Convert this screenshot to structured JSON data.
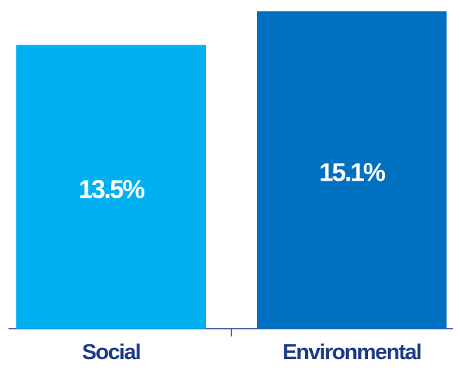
{
  "chart_data": {
    "type": "bar",
    "categories": [
      "Social",
      "Environmental"
    ],
    "values": [
      13.5,
      15.1
    ],
    "value_labels": [
      "13.5%",
      "15.1%"
    ],
    "colors": [
      "#00b0f0",
      "#0070c0"
    ]
  }
}
